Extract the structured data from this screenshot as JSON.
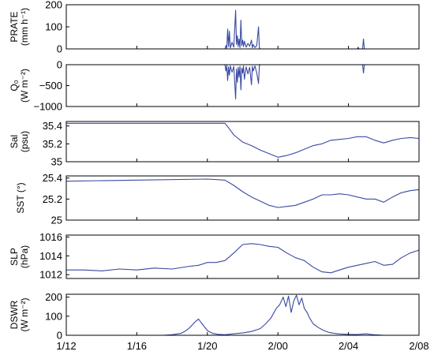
{
  "chart_data": {
    "type": "line",
    "x_axis": {
      "ticks": [
        "1/12",
        "1/16",
        "1/20",
        "2/00",
        "2/04",
        "2/08"
      ]
    },
    "series_color": "#3949a0",
    "panels": [
      {
        "id": "prate",
        "ylabel_lines": [
          "PRATE",
          "(mm h⁻¹)"
        ],
        "ylim": [
          0,
          200
        ],
        "yticks": [
          "200",
          "100",
          "0"
        ],
        "ytick_values": [
          200,
          100,
          0
        ],
        "points": [
          [
            0,
            0
          ],
          [
            8,
            0
          ],
          [
            9,
            0
          ],
          [
            9.05,
            15
          ],
          [
            9.1,
            3
          ],
          [
            9.15,
            90
          ],
          [
            9.2,
            10
          ],
          [
            9.25,
            80
          ],
          [
            9.3,
            5
          ],
          [
            9.4,
            30
          ],
          [
            9.5,
            8
          ],
          [
            9.6,
            175
          ],
          [
            9.65,
            20
          ],
          [
            9.7,
            60
          ],
          [
            9.75,
            10
          ],
          [
            9.8,
            45
          ],
          [
            9.85,
            5
          ],
          [
            9.9,
            130
          ],
          [
            9.95,
            15
          ],
          [
            10,
            40
          ],
          [
            10.05,
            10
          ],
          [
            10.1,
            35
          ],
          [
            10.2,
            8
          ],
          [
            10.3,
            25
          ],
          [
            10.4,
            12
          ],
          [
            10.5,
            40
          ],
          [
            10.55,
            5
          ],
          [
            10.6,
            20
          ],
          [
            10.7,
            6
          ],
          [
            10.8,
            15
          ],
          [
            10.9,
            100
          ],
          [
            10.95,
            5
          ],
          [
            11,
            0
          ],
          [
            16.5,
            0
          ],
          [
            16.55,
            8
          ],
          [
            16.6,
            0
          ],
          [
            16.8,
            0
          ],
          [
            16.85,
            45
          ],
          [
            16.9,
            0
          ],
          [
            22,
            0
          ]
        ]
      },
      {
        "id": "q",
        "ylabel_lines": [
          "Q₀",
          "(W m⁻²)"
        ],
        "ylim": [
          -1000,
          0
        ],
        "yticks": [
          "0",
          "−500",
          "−1000"
        ],
        "ytick_values": [
          0,
          -500,
          -1000
        ],
        "points": [
          [
            0,
            0
          ],
          [
            9,
            0
          ],
          [
            9.05,
            -150
          ],
          [
            9.1,
            -20
          ],
          [
            9.15,
            -380
          ],
          [
            9.2,
            -50
          ],
          [
            9.25,
            -250
          ],
          [
            9.3,
            -30
          ],
          [
            9.4,
            -180
          ],
          [
            9.5,
            -40
          ],
          [
            9.6,
            -820
          ],
          [
            9.65,
            -100
          ],
          [
            9.7,
            -420
          ],
          [
            9.75,
            -60
          ],
          [
            9.8,
            -300
          ],
          [
            9.85,
            -40
          ],
          [
            9.9,
            -600
          ],
          [
            9.95,
            -80
          ],
          [
            10,
            -200
          ],
          [
            10.05,
            -30
          ],
          [
            10.1,
            -350
          ],
          [
            10.2,
            -50
          ],
          [
            10.3,
            -220
          ],
          [
            10.4,
            -60
          ],
          [
            10.5,
            -480
          ],
          [
            10.55,
            -40
          ],
          [
            10.6,
            -150
          ],
          [
            10.7,
            -30
          ],
          [
            10.8,
            -200
          ],
          [
            10.9,
            -450
          ],
          [
            10.95,
            -20
          ],
          [
            11,
            0
          ],
          [
            16.8,
            0
          ],
          [
            16.85,
            -200
          ],
          [
            16.9,
            0
          ],
          [
            22,
            0
          ]
        ]
      },
      {
        "id": "sal",
        "ylabel_lines": [
          "Sal",
          "(psu)"
        ],
        "ylim": [
          35,
          35.45
        ],
        "yticks": [
          "35.4",
          "35.2",
          "35"
        ],
        "ytick_values": [
          35.4,
          35.2,
          35
        ],
        "points": [
          [
            0,
            35.43
          ],
          [
            8,
            35.43
          ],
          [
            9,
            35.43
          ],
          [
            9.2,
            35.38
          ],
          [
            9.5,
            35.3
          ],
          [
            10,
            35.22
          ],
          [
            10.5,
            35.18
          ],
          [
            11,
            35.13
          ],
          [
            11.5,
            35.09
          ],
          [
            12,
            35.05
          ],
          [
            12.5,
            35.07
          ],
          [
            13,
            35.1
          ],
          [
            13.5,
            35.14
          ],
          [
            14,
            35.18
          ],
          [
            14.5,
            35.2
          ],
          [
            15,
            35.24
          ],
          [
            15.5,
            35.25
          ],
          [
            16,
            35.26
          ],
          [
            16.5,
            35.28
          ],
          [
            17,
            35.28
          ],
          [
            17.5,
            35.24
          ],
          [
            18,
            35.21
          ],
          [
            18.5,
            35.24
          ],
          [
            19,
            35.26
          ],
          [
            19.5,
            35.27
          ],
          [
            20,
            35.26
          ],
          [
            20.5,
            35.26
          ],
          [
            21,
            35.27
          ],
          [
            21.5,
            35.26
          ],
          [
            22,
            35.26
          ]
        ]
      },
      {
        "id": "sst",
        "ylabel_lines": [
          "SST (°)"
        ],
        "ylim": [
          25,
          25.42
        ],
        "yticks": [
          "25.4",
          "25.2",
          "25"
        ],
        "ytick_values": [
          25.4,
          25.2,
          25
        ],
        "points": [
          [
            0,
            25.37
          ],
          [
            4,
            25.38
          ],
          [
            8,
            25.39
          ],
          [
            9,
            25.38
          ],
          [
            9.5,
            25.33
          ],
          [
            10,
            25.27
          ],
          [
            10.5,
            25.22
          ],
          [
            11,
            25.18
          ],
          [
            11.5,
            25.14
          ],
          [
            12,
            25.12
          ],
          [
            12.5,
            25.13
          ],
          [
            13,
            25.14
          ],
          [
            13.5,
            25.17
          ],
          [
            14,
            25.2
          ],
          [
            14.5,
            25.24
          ],
          [
            15,
            25.24
          ],
          [
            15.5,
            25.25
          ],
          [
            16,
            25.24
          ],
          [
            16.5,
            25.22
          ],
          [
            17,
            25.2
          ],
          [
            17.5,
            25.2
          ],
          [
            18,
            25.17
          ],
          [
            18.5,
            25.22
          ],
          [
            19,
            25.26
          ],
          [
            19.5,
            25.28
          ],
          [
            20,
            25.29
          ],
          [
            20.5,
            25.27
          ],
          [
            21,
            25.28
          ],
          [
            21.5,
            25.26
          ],
          [
            22,
            25.27
          ]
        ]
      },
      {
        "id": "slp",
        "ylabel_lines": [
          "SLP",
          "(hPa)"
        ],
        "ylim": [
          1011.6,
          1016.2
        ],
        "yticks": [
          "1016",
          "1014",
          "1012"
        ],
        "ytick_values": [
          1016,
          1014,
          1012
        ],
        "points": [
          [
            0,
            1012.5
          ],
          [
            1,
            1012.5
          ],
          [
            2,
            1012.4
          ],
          [
            3,
            1012.6
          ],
          [
            4,
            1012.5
          ],
          [
            5,
            1012.7
          ],
          [
            6,
            1012.6
          ],
          [
            7,
            1012.9
          ],
          [
            7.5,
            1013.0
          ],
          [
            8,
            1013.3
          ],
          [
            8.5,
            1013.3
          ],
          [
            9,
            1013.5
          ],
          [
            9.5,
            1014.3
          ],
          [
            10,
            1015.2
          ],
          [
            10.5,
            1015.3
          ],
          [
            11,
            1015.2
          ],
          [
            11.5,
            1015.0
          ],
          [
            12,
            1014.9
          ],
          [
            12.5,
            1014.3
          ],
          [
            13,
            1013.8
          ],
          [
            13.5,
            1013.5
          ],
          [
            14,
            1012.8
          ],
          [
            14.5,
            1012.3
          ],
          [
            15,
            1012.2
          ],
          [
            15.5,
            1012.5
          ],
          [
            16,
            1012.8
          ],
          [
            16.5,
            1013.0
          ],
          [
            17,
            1013.2
          ],
          [
            17.5,
            1013.4
          ],
          [
            18,
            1013.0
          ],
          [
            18.5,
            1013.1
          ],
          [
            19,
            1013.8
          ],
          [
            19.5,
            1014.3
          ],
          [
            20,
            1014.6
          ],
          [
            20.5,
            1014.8
          ],
          [
            21,
            1014.9
          ],
          [
            21.5,
            1015.0
          ],
          [
            22,
            1014.9
          ]
        ]
      },
      {
        "id": "dswr",
        "ylabel_lines": [
          "DSWR",
          "(W m⁻²)"
        ],
        "ylim": [
          0,
          215
        ],
        "yticks": [
          "200",
          "100",
          "0"
        ],
        "ytick_values": [
          200,
          100,
          0
        ],
        "points": [
          [
            0,
            0
          ],
          [
            5.5,
            0
          ],
          [
            6,
            3
          ],
          [
            6.5,
            10
          ],
          [
            6.8,
            25
          ],
          [
            7,
            40
          ],
          [
            7.3,
            70
          ],
          [
            7.5,
            85
          ],
          [
            7.7,
            60
          ],
          [
            8,
            25
          ],
          [
            8.3,
            10
          ],
          [
            8.6,
            5
          ],
          [
            9,
            3
          ],
          [
            9.5,
            8
          ],
          [
            10,
            12
          ],
          [
            10.5,
            20
          ],
          [
            11,
            35
          ],
          [
            11.3,
            60
          ],
          [
            11.6,
            90
          ],
          [
            11.9,
            140
          ],
          [
            12.1,
            160
          ],
          [
            12.3,
            200
          ],
          [
            12.45,
            150
          ],
          [
            12.6,
            205
          ],
          [
            12.75,
            120
          ],
          [
            12.9,
            180
          ],
          [
            13.05,
            210
          ],
          [
            13.2,
            160
          ],
          [
            13.35,
            195
          ],
          [
            13.5,
            140
          ],
          [
            13.65,
            120
          ],
          [
            13.8,
            90
          ],
          [
            14,
            60
          ],
          [
            14.3,
            40
          ],
          [
            14.6,
            25
          ],
          [
            14.9,
            15
          ],
          [
            15.2,
            10
          ],
          [
            15.5,
            7
          ],
          [
            16,
            5
          ],
          [
            16.5,
            4
          ],
          [
            17,
            8
          ],
          [
            17.3,
            4
          ],
          [
            17.6,
            2
          ],
          [
            18,
            0
          ],
          [
            22,
            0
          ]
        ]
      }
    ]
  }
}
